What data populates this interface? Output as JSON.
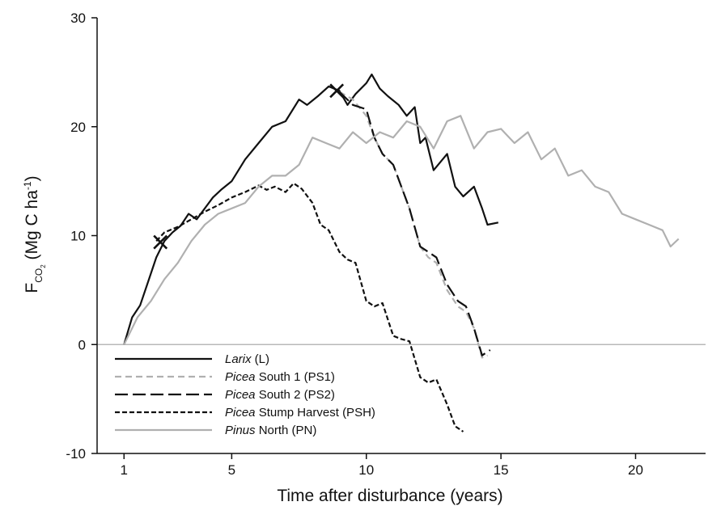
{
  "chart_data": {
    "type": "line",
    "title": "",
    "xlabel": "Time after disturbance (years)",
    "ylabel": {
      "main": "F",
      "sub": "CO",
      "subsub": "2",
      "unit_open": " (Mg C ha",
      "unit_sup": "-1",
      "unit_close": ")"
    },
    "xlim": [
      0,
      22.6
    ],
    "ylim": [
      -10,
      30
    ],
    "x_ticks": [
      1,
      5,
      10,
      15,
      20
    ],
    "y_ticks": [
      -10,
      0,
      10,
      20,
      30
    ],
    "zero_line": true,
    "grid": false,
    "legend_position": "bottom-left",
    "series": [
      {
        "key": "L",
        "name_italic": "Larix",
        "name_rest": " (L)",
        "color": "#111111",
        "dash": "solid",
        "x": [
          1,
          1.3,
          1.6,
          1.9,
          2.2,
          2.5,
          2.8,
          3.1,
          3.4,
          3.7,
          4,
          4.3,
          4.6,
          5,
          5.5,
          6,
          6.5,
          7,
          7.5,
          7.8,
          8.2,
          8.6,
          9,
          9.3,
          9.6,
          10,
          10.2,
          10.5,
          10.8,
          11.2,
          11.5,
          11.8,
          12,
          12.2,
          12.5,
          13,
          13.3,
          13.6,
          14,
          14.3,
          14.5,
          14.9
        ],
        "y": [
          0,
          2.5,
          3.6,
          5.8,
          8,
          9.5,
          10.3,
          10.9,
          12,
          11.5,
          12.5,
          13.5,
          14.2,
          15,
          17,
          18.5,
          20,
          20.5,
          22.5,
          22,
          22.8,
          23.7,
          23.3,
          22,
          23,
          24,
          24.8,
          23.5,
          22.8,
          22,
          21,
          21.8,
          18.5,
          19,
          16,
          17.5,
          14.5,
          13.6,
          14.5,
          12.5,
          11,
          11.2
        ]
      },
      {
        "key": "PS1",
        "name_italic": "Picea",
        "name_rest": " South 1 (PS1)",
        "color": "#b0b0b0",
        "dash": "8 5",
        "x": [
          9,
          9.5,
          10,
          10.3,
          10.6,
          11,
          11.3,
          11.6,
          12,
          12.3,
          12.6,
          13,
          13.4,
          13.7,
          14,
          14.3,
          14.5
        ],
        "y": [
          23.2,
          22.5,
          21,
          19,
          17.5,
          16.5,
          14.5,
          12.5,
          9,
          8,
          7.5,
          5,
          3.5,
          3,
          1.5,
          -1.2,
          -1
        ]
      },
      {
        "key": "PS2",
        "name_italic": "Picea",
        "name_rest": " South 2 (PS2)",
        "color": "#111111",
        "dash": "16 6",
        "x": [
          9,
          9.5,
          10,
          10.3,
          10.6,
          11,
          11.3,
          11.6,
          12,
          12.3,
          12.6,
          13,
          13.4,
          13.7,
          14,
          14.3,
          14.6
        ],
        "y": [
          23.2,
          22,
          21.6,
          19,
          17.5,
          16.5,
          14.5,
          12.5,
          9,
          8.5,
          8,
          5.5,
          4,
          3.5,
          1.5,
          -1,
          -0.5
        ]
      },
      {
        "key": "PSH",
        "name_italic": "Picea",
        "name_rest": " Stump Harvest (PSH)",
        "color": "#111111",
        "dash": "6 3",
        "x": [
          2.2,
          2.5,
          3,
          3.5,
          4,
          4.5,
          5,
          5.5,
          6,
          6.3,
          6.6,
          7,
          7.3,
          7.6,
          8,
          8.3,
          8.6,
          9,
          9.3,
          9.6,
          10,
          10.3,
          10.6,
          11,
          11.3,
          11.6,
          12,
          12.3,
          12.6,
          13,
          13.3,
          13.6
        ],
        "y": [
          9.5,
          10.3,
          10.8,
          11.5,
          12.2,
          12.8,
          13.5,
          14,
          14.6,
          14.2,
          14.5,
          14,
          14.8,
          14.3,
          13,
          11,
          10.5,
          8.5,
          7.8,
          7.5,
          4,
          3.5,
          3.8,
          0.8,
          0.5,
          0.3,
          -3,
          -3.5,
          -3.2,
          -5.5,
          -7.5,
          -8
        ]
      },
      {
        "key": "PN",
        "name_italic": "Pinus",
        "name_rest": " North (PN)",
        "color": "#b0b0b0",
        "dash": "solid",
        "x": [
          1,
          1.5,
          2,
          2.5,
          3,
          3.5,
          4,
          4.5,
          5,
          5.5,
          6,
          6.5,
          7,
          7.5,
          8,
          8.5,
          9,
          9.5,
          10,
          10.5,
          11,
          11.5,
          12,
          12.5,
          13,
          13.5,
          14,
          14.5,
          15,
          15.5,
          16,
          16.5,
          17,
          17.5,
          18,
          18.5,
          19,
          19.5,
          20,
          20.5,
          21,
          21.3,
          21.6
        ],
        "y": [
          0,
          2.5,
          4,
          6,
          7.5,
          9.5,
          11,
          12,
          12.5,
          13,
          14.5,
          15.5,
          15.5,
          16.5,
          19,
          18.5,
          18,
          19.5,
          18.5,
          19.5,
          19,
          20.5,
          20,
          18,
          20.5,
          21,
          18,
          19.5,
          19.8,
          18.5,
          19.5,
          17,
          18,
          15.5,
          16,
          14.5,
          14,
          12,
          11.5,
          11,
          10.5,
          9,
          9.7
        ]
      }
    ],
    "markers": [
      {
        "x": 2.35,
        "y": 9.4,
        "shape": "x"
      },
      {
        "x": 8.9,
        "y": 23.3,
        "shape": "x"
      }
    ]
  }
}
